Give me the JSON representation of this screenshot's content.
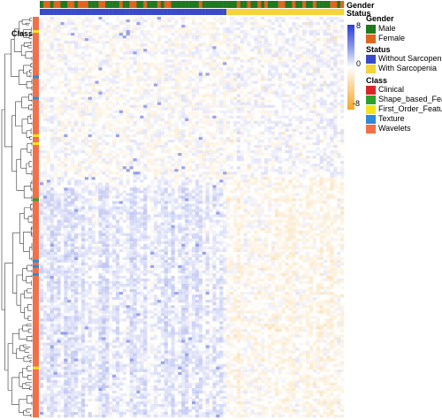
{
  "chart_data": {
    "type": "heatmap",
    "annotation_tracks": {
      "top": [
        "Gender",
        "Status"
      ],
      "left": "Class"
    },
    "colorbar": {
      "ticks": [
        8,
        0,
        -8
      ],
      "colors": {
        "high": "#2b3bd6",
        "mid": "#ffffff",
        "low": "#f5a623"
      }
    },
    "legends": [
      {
        "title": "Gender",
        "items": [
          {
            "label": "Male",
            "color": "#1f7a1f"
          },
          {
            "label": "Female",
            "color": "#e0651e"
          }
        ]
      },
      {
        "title": "Status",
        "items": [
          {
            "label": "Without Sarcopenia",
            "color": "#3a4bc8"
          },
          {
            "label": "With Sarcopenia",
            "color": "#f5d33a"
          }
        ]
      },
      {
        "title": "Class",
        "items": [
          {
            "label": "Clinical",
            "color": "#d62728"
          },
          {
            "label": "Shape_based_Features",
            "color": "#2ca02c"
          },
          {
            "label": "First_Order_Features",
            "color": "#f2e41b"
          },
          {
            "label": "Texture",
            "color": "#2f8ad8"
          },
          {
            "label": "Wavelets",
            "color": "#f0704a"
          }
        ]
      }
    ],
    "legend_placement": "right",
    "dendrogram": "left (rows)"
  }
}
